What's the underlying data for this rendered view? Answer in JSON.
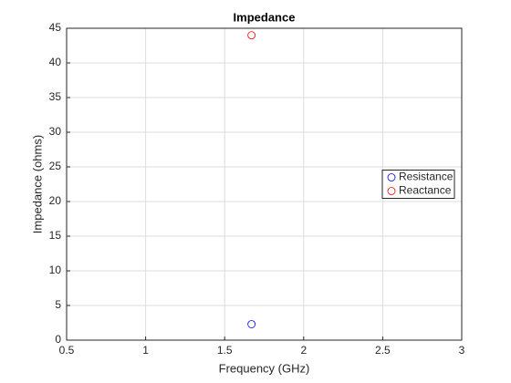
{
  "chart_data": {
    "type": "scatter",
    "title": "Impedance",
    "x_label": "Frequency (GHz)",
    "y_label": "Impedance (ohms)",
    "x": [
      1.67
    ],
    "series": [
      {
        "name": "Resistance",
        "color": "#0000ff",
        "values": [
          2.3
        ]
      },
      {
        "name": "Reactance",
        "color": "#ff0000",
        "values": [
          44
        ]
      }
    ],
    "xlim": [
      0.5,
      3
    ],
    "xticks": [
      0.5,
      1,
      1.5,
      2,
      2.5,
      3
    ],
    "ylim": [
      0,
      45
    ],
    "yticks": [
      0,
      5,
      10,
      15,
      20,
      25,
      30,
      35,
      40,
      45
    ],
    "grid": true,
    "legend": "east"
  }
}
